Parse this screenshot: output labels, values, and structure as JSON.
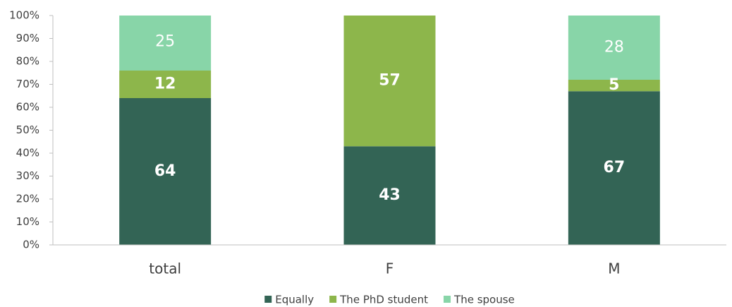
{
  "chart_data": {
    "type": "bar",
    "stacked": true,
    "categories": [
      "total",
      "F",
      "M"
    ],
    "series": [
      {
        "name": "Equally",
        "color": "#336455",
        "values": [
          64,
          43,
          67
        ]
      },
      {
        "name": "The PhD student",
        "color": "#8db64b",
        "values": [
          12,
          57,
          5
        ]
      },
      {
        "name": "The spouse",
        "color": "#88d5a8",
        "values": [
          25,
          null,
          28
        ]
      }
    ],
    "ylim": [
      0,
      100
    ],
    "yticks": [
      {
        "value": 0,
        "label": "0%"
      },
      {
        "value": 10,
        "label": "10%"
      },
      {
        "value": 20,
        "label": "20%"
      },
      {
        "value": 30,
        "label": "30%"
      },
      {
        "value": 40,
        "label": "40%"
      },
      {
        "value": 50,
        "label": "50%"
      },
      {
        "value": 60,
        "label": "60%"
      },
      {
        "value": 70,
        "label": "70%"
      },
      {
        "value": 80,
        "label": "80%"
      },
      {
        "value": 90,
        "label": "90%"
      },
      {
        "value": 100,
        "label": "100%"
      }
    ],
    "grid": false,
    "legend": "bottom"
  }
}
